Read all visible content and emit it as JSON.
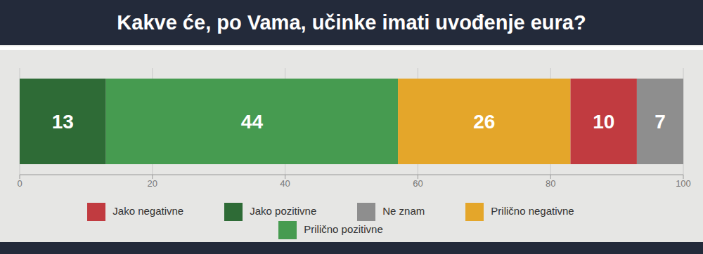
{
  "chart_data": {
    "type": "bar",
    "title": "Kakve će, po Vama, učinke imati uvođenje eura?",
    "orientation": "horizontal",
    "stacked": true,
    "data_labels": true,
    "grid": true,
    "legend": "bottom",
    "tick_labels": "x",
    "categories": [
      null
    ],
    "series": [
      {
        "name": "Jako pozitivne",
        "color": "#2e6b36",
        "values": [
          13
        ]
      },
      {
        "name": "Prilično pozitivne",
        "color": "#469b50",
        "values": [
          44
        ]
      },
      {
        "name": "Prilično negativne",
        "color": "#e4a62a",
        "values": [
          26
        ]
      },
      {
        "name": "Jako negativne",
        "color": "#c13b40",
        "values": [
          10
        ]
      },
      {
        "name": "Ne znam",
        "color": "#8e8e8e",
        "values": [
          7
        ]
      }
    ],
    "xlim": [
      0,
      100
    ],
    "xticks": [
      0,
      20,
      40,
      60,
      80,
      100
    ]
  }
}
